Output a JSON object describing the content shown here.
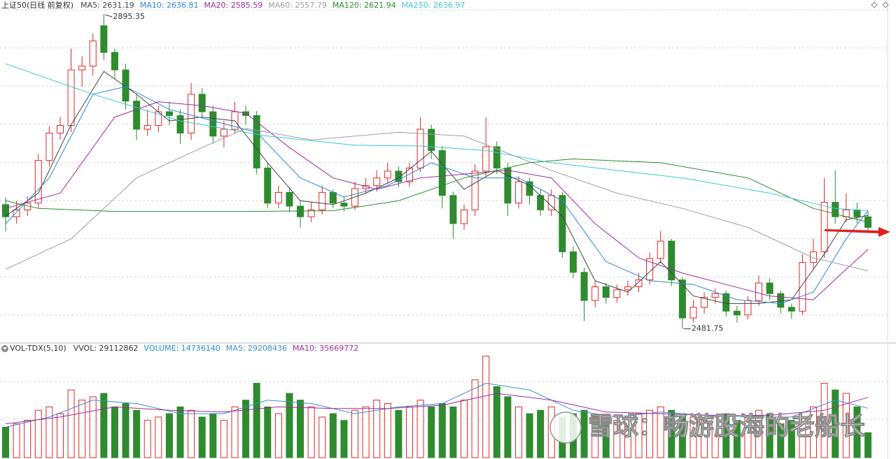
{
  "chart_data": [
    {
      "type": "candlestick",
      "title": "上证50(日线 前复权)",
      "up_color": "#e02828",
      "down_color": "#2e8b2e",
      "ylim": [
        2464,
        2901
      ],
      "grid": true,
      "candles": [
        [
          2645,
          2655,
          2610,
          2629
        ],
        [
          2629,
          2650,
          2620,
          2638
        ],
        [
          2638,
          2656,
          2630,
          2647
        ],
        [
          2647,
          2712,
          2640,
          2703
        ],
        [
          2703,
          2748,
          2695,
          2739
        ],
        [
          2739,
          2760,
          2730,
          2749
        ],
        [
          2749,
          2850,
          2740,
          2822
        ],
        [
          2822,
          2840,
          2800,
          2827
        ],
        [
          2827,
          2870,
          2815,
          2860
        ],
        [
          2880,
          2895.35,
          2835,
          2845
        ],
        [
          2845,
          2850,
          2810,
          2822
        ],
        [
          2822,
          2830,
          2770,
          2781
        ],
        [
          2781,
          2790,
          2730,
          2744
        ],
        [
          2744,
          2770,
          2735,
          2749
        ],
        [
          2749,
          2775,
          2740,
          2767
        ],
        [
          2767,
          2780,
          2750,
          2762
        ],
        [
          2762,
          2770,
          2725,
          2739
        ],
        [
          2739,
          2805,
          2730,
          2790
        ],
        [
          2790,
          2798,
          2760,
          2767
        ],
        [
          2767,
          2775,
          2725,
          2735
        ],
        [
          2735,
          2755,
          2720,
          2744
        ],
        [
          2744,
          2780,
          2738,
          2767
        ],
        [
          2767,
          2775,
          2750,
          2762
        ],
        [
          2762,
          2768,
          2685,
          2693
        ],
        [
          2693,
          2700,
          2640,
          2647
        ],
        [
          2647,
          2670,
          2640,
          2661
        ],
        [
          2661,
          2668,
          2635,
          2643
        ],
        [
          2643,
          2650,
          2615,
          2629
        ],
        [
          2629,
          2648,
          2622,
          2638
        ],
        [
          2638,
          2670,
          2632,
          2661
        ],
        [
          2661,
          2665,
          2640,
          2647
        ],
        [
          2647,
          2655,
          2636,
          2643
        ],
        [
          2643,
          2675,
          2638,
          2666
        ],
        [
          2666,
          2680,
          2660,
          2670
        ],
        [
          2670,
          2690,
          2662,
          2680
        ],
        [
          2680,
          2700,
          2672,
          2689
        ],
        [
          2689,
          2695,
          2668,
          2675
        ],
        [
          2675,
          2700,
          2668,
          2693
        ],
        [
          2693,
          2760,
          2688,
          2744
        ],
        [
          2744,
          2750,
          2705,
          2716
        ],
        [
          2716,
          2722,
          2640,
          2657
        ],
        [
          2657,
          2662,
          2600,
          2620
        ],
        [
          2620,
          2645,
          2612,
          2638
        ],
        [
          2638,
          2698,
          2630,
          2689
        ],
        [
          2689,
          2760,
          2682,
          2721
        ],
        [
          2721,
          2728,
          2685,
          2693
        ],
        [
          2693,
          2700,
          2630,
          2647
        ],
        [
          2647,
          2682,
          2640,
          2675
        ],
        [
          2675,
          2680,
          2645,
          2657
        ],
        [
          2657,
          2665,
          2630,
          2638
        ],
        [
          2638,
          2665,
          2630,
          2657
        ],
        [
          2657,
          2662,
          2575,
          2583
        ],
        [
          2583,
          2590,
          2548,
          2556
        ],
        [
          2556,
          2562,
          2492,
          2519
        ],
        [
          2519,
          2545,
          2510,
          2537
        ],
        [
          2537,
          2542,
          2515,
          2523
        ],
        [
          2523,
          2540,
          2516,
          2533
        ],
        [
          2533,
          2545,
          2525,
          2537
        ],
        [
          2537,
          2555,
          2530,
          2546
        ],
        [
          2546,
          2582,
          2540,
          2574
        ],
        [
          2574,
          2610,
          2568,
          2597
        ],
        [
          2597,
          2600,
          2538,
          2546
        ],
        [
          2546,
          2550,
          2481.75,
          2496
        ],
        [
          2496,
          2520,
          2490,
          2510
        ],
        [
          2510,
          2530,
          2502,
          2523
        ],
        [
          2523,
          2535,
          2515,
          2528
        ],
        [
          2528,
          2532,
          2498,
          2505
        ],
        [
          2505,
          2512,
          2490,
          2500
        ],
        [
          2500,
          2525,
          2494,
          2519
        ],
        [
          2519,
          2552,
          2512,
          2542
        ],
        [
          2542,
          2548,
          2520,
          2528
        ],
        [
          2528,
          2532,
          2502,
          2510
        ],
        [
          2510,
          2515,
          2495,
          2505
        ],
        [
          2505,
          2580,
          2500,
          2569
        ],
        [
          2569,
          2600,
          2560,
          2583
        ],
        [
          2583,
          2680,
          2575,
          2648
        ],
        [
          2648,
          2690,
          2620,
          2629
        ],
        [
          2629,
          2660,
          2622,
          2638
        ],
        [
          2638,
          2648,
          2620,
          2629
        ],
        [
          2629,
          2636,
          2610,
          2615
        ]
      ],
      "series": [
        {
          "name": "MA5: 2631.19",
          "color": "#444444",
          "x": [
            0,
            3,
            6,
            9,
            12,
            15,
            18,
            21,
            24,
            27,
            30,
            33,
            36,
            39,
            42,
            45,
            48,
            51,
            54,
            57,
            60,
            63,
            66,
            69,
            72,
            75,
            77,
            79
          ],
          "values": [
            2630,
            2660,
            2750,
            2820,
            2790,
            2755,
            2760,
            2755,
            2700,
            2650,
            2645,
            2660,
            2680,
            2715,
            2665,
            2690,
            2670,
            2630,
            2545,
            2530,
            2570,
            2525,
            2515,
            2515,
            2520,
            2580,
            2625,
            2631
          ]
        },
        {
          "name": "MA10: 2636.81",
          "color": "#2a8ad4",
          "x": [
            0,
            4,
            8,
            11,
            15,
            19,
            23,
            27,
            31,
            35,
            39,
            43,
            47,
            51,
            55,
            59,
            63,
            67,
            71,
            74,
            77,
            79
          ],
          "values": [
            2620,
            2680,
            2790,
            2800,
            2770,
            2755,
            2740,
            2680,
            2655,
            2670,
            2700,
            2680,
            2680,
            2650,
            2570,
            2545,
            2540,
            2520,
            2515,
            2530,
            2600,
            2637
          ]
        },
        {
          "name": "MA20: 2585.59",
          "color": "#a02aa0",
          "x": [
            0,
            5,
            10,
            14,
            18,
            22,
            26,
            30,
            34,
            38,
            42,
            46,
            50,
            54,
            58,
            62,
            66,
            70,
            74,
            77,
            79
          ],
          "values": [
            2640,
            2660,
            2760,
            2780,
            2775,
            2765,
            2720,
            2680,
            2665,
            2680,
            2685,
            2690,
            2680,
            2620,
            2575,
            2555,
            2540,
            2525,
            2520,
            2560,
            2586
          ]
        },
        {
          "name": "MA60: 2557.79",
          "color": "#a0a0a0",
          "x": [
            0,
            6,
            12,
            18,
            22,
            28,
            36,
            42,
            50,
            56,
            62,
            68,
            74,
            79
          ],
          "values": [
            2560,
            2600,
            2680,
            2720,
            2745,
            2730,
            2740,
            2735,
            2690,
            2660,
            2640,
            2615,
            2575,
            2558
          ]
        },
        {
          "name": "MA120: 2621.94",
          "color": "#2e8b2e",
          "x": [
            0,
            3,
            10,
            22,
            30,
            36,
            42,
            48,
            52,
            60,
            68,
            74,
            79
          ],
          "values": [
            2650,
            2640,
            2636,
            2636,
            2637,
            2650,
            2680,
            2700,
            2705,
            2700,
            2680,
            2640,
            2622
          ]
        },
        {
          "name": "MA250: 2636.97",
          "color": "#3cc8d8",
          "x": [
            0,
            8,
            16,
            24,
            32,
            38,
            44,
            50,
            56,
            62,
            70,
            76,
            79
          ],
          "values": [
            2830,
            2790,
            2755,
            2735,
            2723,
            2722,
            2716,
            2700,
            2690,
            2680,
            2660,
            2640,
            2637
          ]
        }
      ],
      "annotations": [
        {
          "candle": 9,
          "part": 1
        },
        {
          "candle": 62,
          "part": 2
        }
      ]
    },
    {
      "type": "bar",
      "title": "VOL-TDX(5,10)",
      "label": "VVOL: 29112862",
      "ylim": [
        0,
        62000000
      ],
      "watermark": "雪球：畅游股海的老船长",
      "bars": {
        "name": "VOLUME: 14736140",
        "color": "#1e90d0",
        "values": [
          18000000,
          20000000,
          22000000,
          28000000,
          30000000,
          26000000,
          40000000,
          34000000,
          36000000,
          38000000,
          30000000,
          32000000,
          28000000,
          22000000,
          24000000,
          26000000,
          30000000,
          28000000,
          24000000,
          26000000,
          22000000,
          30000000,
          34000000,
          44000000,
          30000000,
          26000000,
          38000000,
          34000000,
          30000000,
          24000000,
          26000000,
          22000000,
          28000000,
          30000000,
          34000000,
          32000000,
          28000000,
          30000000,
          34000000,
          30000000,
          32000000,
          30000000,
          34000000,
          46000000,
          60000000,
          42000000,
          36000000,
          30000000,
          26000000,
          28000000,
          30000000,
          24000000,
          26000000,
          28000000,
          24000000,
          20000000,
          22000000,
          24000000,
          26000000,
          28000000,
          30000000,
          28000000,
          26000000,
          24000000,
          22000000,
          24000000,
          26000000,
          22000000,
          24000000,
          28000000,
          26000000,
          20000000,
          22000000,
          24000000,
          30000000,
          44000000,
          40000000,
          38000000,
          30000000,
          14736140
        ]
      },
      "series": [
        {
          "name": "MA5: 29208436",
          "color": "#3a8fd0",
          "x": [
            0,
            4,
            8,
            12,
            16,
            20,
            24,
            28,
            32,
            36,
            40,
            44,
            48,
            52,
            56,
            60,
            64,
            68,
            72,
            76,
            79
          ],
          "values": [
            18000000,
            24000000,
            34000000,
            32000000,
            26000000,
            26000000,
            34000000,
            32000000,
            26000000,
            30000000,
            32000000,
            44000000,
            40000000,
            28000000,
            24000000,
            27000000,
            25000000,
            24000000,
            24000000,
            34000000,
            29208436
          ]
        },
        {
          "name": "MA10: 35669772",
          "color": "#a02aa0",
          "x": [
            0,
            5,
            10,
            15,
            20,
            25,
            30,
            35,
            40,
            45,
            50,
            55,
            60,
            65,
            70,
            75,
            79
          ],
          "values": [
            20000000,
            24000000,
            30000000,
            28000000,
            27000000,
            30000000,
            29000000,
            29000000,
            31000000,
            38000000,
            34000000,
            27000000,
            26000000,
            25000000,
            25000000,
            28000000,
            35669772
          ]
        }
      ]
    }
  ]
}
